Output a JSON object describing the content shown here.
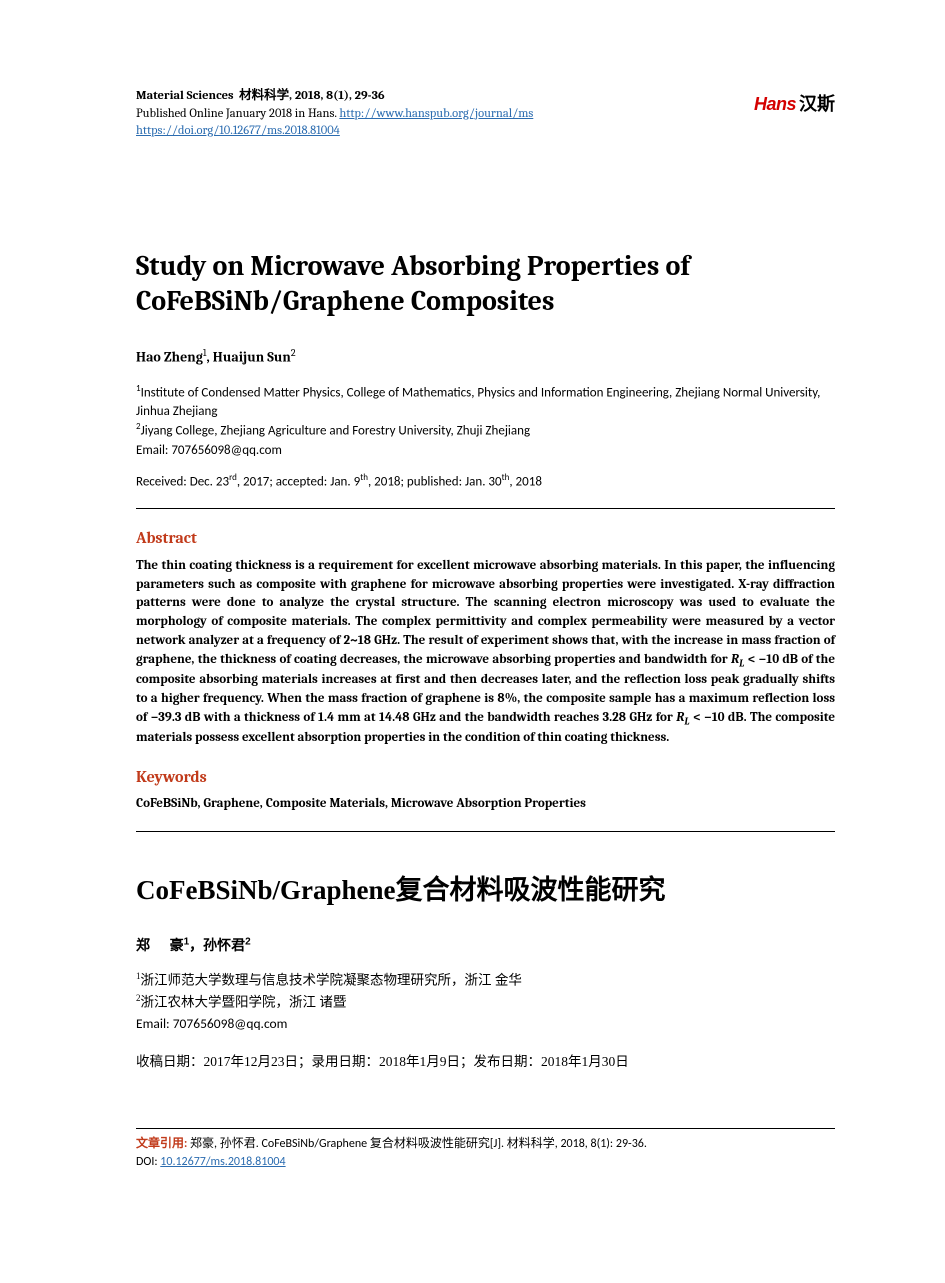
{
  "header": {
    "journal": "Material Sciences",
    "journal_cn": "材料科学",
    "year_vol": "2018, 8(1), 29-36",
    "pub_line_prefix": "Published Online January 2018 in Hans. ",
    "journal_url": "http://www.hanspub.org/journal/ms",
    "doi_url": "https://doi.org/10.12677/ms.2018.81004"
  },
  "logo": {
    "red": "Hans",
    "cn": "汉斯"
  },
  "title_en": "Study on Microwave Absorbing Properties of CoFeBSiNb/Graphene Composites",
  "authors_en": {
    "a1": "Hao Zheng",
    "a2": "Huaijun Sun"
  },
  "affil_en": {
    "a1": "Institute of Condensed Matter Physics, College of Mathematics, Physics and Information Engineering, Zhejiang Normal University, Jinhua Zhejiang",
    "a2": "Jiyang College, Zhejiang Agriculture and Forestry University, Zhuji Zhejiang"
  },
  "email": "Email: 707656098@qq.com",
  "dates_en": {
    "recv_pre": "Received: Dec. 23",
    "recv_suf": ", 2017; ",
    "acc_pre": "accepted: Jan. 9",
    "acc_suf": ", 2018; ",
    "pub_pre": "published: Jan. 30",
    "pub_suf": ", 2018"
  },
  "section": {
    "abstract": "Abstract",
    "keywords": "Keywords"
  },
  "abstract_en": {
    "p1": "The thin coating thickness is a requirement for excellent microwave absorbing materials. In this paper, the influencing parameters such as composite with graphene for microwave absorbing properties were investigated. X-ray diffraction patterns were done to analyze the crystal structure. The scanning electron microscopy was used to evaluate the morphology of composite materials. The complex permittivity and complex permeability were measured by a vector network analyzer at a frequency of 2~18 GHz. The result of experiment shows that, with the increase in mass fraction of graphene, the thickness of coating decreases, the microwave absorbing properties and bandwidth for ",
    "rl1": "R",
    "rl1sub": "L",
    "p2": " < −10 dB of the composite absorbing materials increases at first and then decreases later, and the reflection loss peak gradually shifts to a higher frequency. When the mass fraction of graphene is 8%, the composite sample has a maximum reflection loss of −39.3 dB with a thickness of 1.4 mm at 14.48 GHz and the bandwidth reaches 3.28 GHz for ",
    "rl2": "R",
    "rl2sub": "L",
    "p3": " < −10 dB. The composite materials possess excellent absorption properties in the condition of thin coating thickness."
  },
  "keywords_en": "CoFeBSiNb, Graphene, Composite Materials, Microwave Absorption Properties",
  "title_cn": "CoFeBSiNb/Graphene复合材料吸波性能研究",
  "authors_cn": {
    "a1a": "郑",
    "a1b": "豪",
    "sep": "，",
    "a2": "孙怀君"
  },
  "affil_cn": {
    "a1": "浙江师范大学数理与信息技术学院凝聚态物理研究所，浙江 金华",
    "a2": "浙江农林大学暨阳学院，浙江 诸暨"
  },
  "dates_cn": "收稿日期：2017年12月23日；录用日期：2018年1月9日；发布日期：2018年1月30日",
  "footer": {
    "cite_label": "文章引用: ",
    "cite_text": "郑豪, 孙怀君. CoFeBSiNb/Graphene 复合材料吸波性能研究[J]. 材料科学, 2018, 8(1): 29-36.",
    "doi_label": "DOI: ",
    "doi_link": "10.12677/ms.2018.81004",
    "doi_href": "https://doi.org/10.12677/ms.2018.81004"
  }
}
